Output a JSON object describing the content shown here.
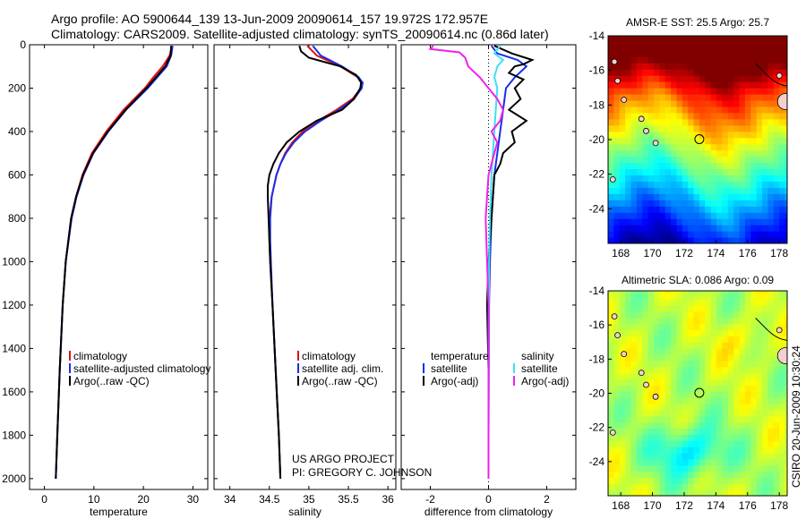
{
  "header": {
    "line1": "Argo profile: AO 5900644_139 13-Jun-2009 20090614_157 19.972S 172.957E",
    "line2": "Climatology: CARS2009. Satellite-adjusted climatology: synTS_20090614.nc (0.86d later)"
  },
  "colors": {
    "climatology": "#e01010",
    "satellite": "#1a2ee8",
    "argo": "#000000",
    "sal_satellite": "#40e0f0",
    "sal_argo": "#ee22ee"
  },
  "credits": {
    "project": "US ARGO PROJECT",
    "pi": "PI: GREGORY C. JOHNSON",
    "timestamp": "CSIRO 20-Jun-2009 10:30:24"
  },
  "chart_data": [
    {
      "type": "line",
      "title": "",
      "xlabel": "temperature",
      "ylabel": "",
      "xlim": [
        -3,
        33
      ],
      "ylim": [
        2050,
        0
      ],
      "xticks": [
        0,
        10,
        20,
        30
      ],
      "yticks": [
        0,
        200,
        400,
        600,
        800,
        1000,
        1200,
        1400,
        1600,
        1800,
        2000
      ],
      "legend": [
        "climatology",
        "satellite-adjusted climatology",
        "Argo(..raw -QC)"
      ],
      "series": [
        {
          "name": "climatology",
          "color": "#e01010",
          "depth": [
            5,
            50,
            100,
            150,
            200,
            300,
            400,
            500,
            600,
            700,
            800,
            1000,
            1200,
            1500,
            1800,
            2000
          ],
          "values": [
            25.8,
            25.3,
            23.9,
            22.0,
            20.3,
            16.0,
            12.5,
            9.6,
            7.7,
            6.4,
            5.4,
            4.3,
            3.7,
            3.1,
            2.6,
            2.3
          ]
        },
        {
          "name": "satellite-adjusted climatology",
          "color": "#1a2ee8",
          "depth": [
            5,
            50,
            100,
            150,
            200,
            300,
            400,
            500,
            600,
            700,
            800,
            1000,
            1200,
            1500,
            1800,
            2000
          ],
          "values": [
            25.9,
            25.6,
            24.7,
            22.8,
            20.9,
            16.5,
            12.9,
            9.9,
            7.9,
            6.5,
            5.5,
            4.3,
            3.7,
            3.1,
            2.6,
            2.3
          ]
        },
        {
          "name": "Argo(..raw -QC)",
          "color": "#000000",
          "depth": [
            5,
            50,
            100,
            150,
            200,
            300,
            400,
            500,
            600,
            700,
            800,
            1000,
            1200,
            1500,
            1800,
            2000
          ],
          "values": [
            25.6,
            25.5,
            24.4,
            22.5,
            20.6,
            16.4,
            12.8,
            9.8,
            7.8,
            6.4,
            5.4,
            4.3,
            3.7,
            3.1,
            2.6,
            2.3
          ]
        }
      ]
    },
    {
      "type": "line",
      "title": "",
      "xlabel": "salinity",
      "ylabel": "",
      "xlim": [
        33.8,
        36.1
      ],
      "ylim": [
        2050,
        0
      ],
      "xticks": [
        34,
        34.5,
        35,
        35.5,
        36
      ],
      "yticks": [
        0,
        200,
        400,
        600,
        800,
        1000,
        1200,
        1400,
        1600,
        1800,
        2000
      ],
      "legend": [
        "climatology",
        "satellite adj. clim.",
        "Argo(..raw -QC)"
      ],
      "series": [
        {
          "name": "climatology",
          "color": "#e01010",
          "depth": [
            5,
            50,
            100,
            150,
            175,
            200,
            250,
            300,
            350,
            400,
            450,
            500,
            550,
            600,
            700,
            800,
            900,
            1000,
            1200,
            1500,
            1800,
            2000
          ],
          "values": [
            34.98,
            35.1,
            35.4,
            35.62,
            35.68,
            35.66,
            35.55,
            35.35,
            35.12,
            34.92,
            34.79,
            34.7,
            34.64,
            34.59,
            34.53,
            34.5,
            34.5,
            34.51,
            34.54,
            34.58,
            34.62,
            34.64
          ]
        },
        {
          "name": "satellite adj. clim.",
          "color": "#1a2ee8",
          "depth": [
            5,
            50,
            100,
            150,
            175,
            200,
            250,
            300,
            350,
            400,
            450,
            500,
            550,
            600,
            700,
            800,
            900,
            1000,
            1200,
            1500,
            1800,
            2000
          ],
          "values": [
            35.05,
            35.15,
            35.42,
            35.63,
            35.68,
            35.67,
            35.57,
            35.38,
            35.15,
            34.95,
            34.81,
            34.71,
            34.64,
            34.59,
            34.53,
            34.51,
            34.51,
            34.52,
            34.54,
            34.58,
            34.62,
            34.64
          ]
        },
        {
          "name": "Argo(..raw -QC)",
          "color": "#000000",
          "depth": [
            5,
            30,
            60,
            80,
            100,
            140,
            175,
            200,
            250,
            300,
            350,
            400,
            450,
            500,
            550,
            600,
            650,
            700,
            800,
            900,
            1000,
            1200,
            1500,
            1800,
            2000
          ],
          "values": [
            34.88,
            34.9,
            35.0,
            35.2,
            35.4,
            35.6,
            35.66,
            35.65,
            35.57,
            35.42,
            35.1,
            34.88,
            34.72,
            34.62,
            34.55,
            34.5,
            34.48,
            34.48,
            34.49,
            34.5,
            34.51,
            34.54,
            34.58,
            34.62,
            34.64
          ]
        }
      ]
    },
    {
      "type": "line",
      "title": "",
      "xlabel": "difference from climatology",
      "ylabel": "",
      "xlim": [
        -3,
        3
      ],
      "ylim": [
        2050,
        0
      ],
      "xticks": [
        -2,
        0,
        2
      ],
      "yticks": [
        0,
        200,
        400,
        600,
        800,
        1000,
        1200,
        1400,
        1600,
        1800,
        2000
      ],
      "legend_temperature_header": "temperature",
      "legend_salinity_header": "salinity",
      "legend": [
        "satellite",
        "Argo(-adj)",
        "satellite",
        "Argo(-adj)"
      ],
      "series": [
        {
          "name": "temperature satellite",
          "color": "#1a2ee8",
          "depth": [
            5,
            40,
            70,
            100,
            150,
            200,
            300,
            400,
            500,
            600,
            700,
            800,
            1000,
            1200,
            1500,
            1800,
            2000
          ],
          "values": [
            0.1,
            0.3,
            1.0,
            1.3,
            0.9,
            0.6,
            0.5,
            0.4,
            0.3,
            0.2,
            0.15,
            0.1,
            0.05,
            0.02,
            0.01,
            0.0,
            0.0
          ]
        },
        {
          "name": "temperature Argo(-adj)",
          "color": "#000000",
          "depth": [
            5,
            40,
            70,
            90,
            100,
            130,
            160,
            200,
            250,
            300,
            350,
            400,
            450,
            500,
            550,
            600,
            700,
            800,
            1000,
            1200,
            1500,
            1800,
            2000
          ],
          "values": [
            0.2,
            0.8,
            1.5,
            1.2,
            0.9,
            0.7,
            1.2,
            0.9,
            1.1,
            0.7,
            1.3,
            0.8,
            0.9,
            0.5,
            0.4,
            0.2,
            0.15,
            0.1,
            0.0,
            -0.05,
            0.0,
            0.0,
            0.0
          ]
        },
        {
          "name": "salinity satellite",
          "color": "#40e0f0",
          "depth": [
            5,
            40,
            70,
            100,
            150,
            200,
            300,
            400,
            500,
            600,
            800,
            1000,
            1500,
            2000
          ],
          "values": [
            0.4,
            0.2,
            0.5,
            0.3,
            0.2,
            0.3,
            0.25,
            0.2,
            0.15,
            0.1,
            0.05,
            0.02,
            0.0,
            0.0
          ]
        },
        {
          "name": "salinity Argo(-adj)",
          "color": "#ee22ee",
          "depth": [
            5,
            20,
            35,
            60,
            100,
            150,
            200,
            250,
            300,
            350,
            400,
            450,
            500,
            550,
            600,
            700,
            800,
            1000,
            1200,
            1500,
            1800,
            2000
          ],
          "values": [
            -1.9,
            -2.0,
            -1.0,
            -0.8,
            -0.7,
            -0.3,
            0.0,
            0.3,
            0.5,
            0.4,
            0.1,
            0.3,
            0.2,
            0.1,
            0.0,
            -0.05,
            -0.1,
            -0.05,
            0.0,
            0.0,
            0.0,
            0.0
          ]
        }
      ]
    },
    {
      "type": "heatmap",
      "title": "AMSR-E SST: 25.5 Argo: 25.7",
      "xlabel": "",
      "ylabel": "",
      "xlim": [
        167.2,
        178.5
      ],
      "ylim": [
        -26,
        -14
      ],
      "xticks": [
        168,
        170,
        172,
        174,
        176,
        178
      ],
      "yticks": [
        -14,
        -16,
        -18,
        -20,
        -22,
        -24
      ],
      "marker": {
        "lon": 172.957,
        "lat": -19.972
      },
      "colorscale": "jet",
      "value_range": [
        21,
        28
      ],
      "legend": "none"
    },
    {
      "type": "heatmap",
      "title": "Altimetric SLA: 0.086 Argo: 0.09",
      "xlabel": "",
      "ylabel": "",
      "xlim": [
        167.2,
        178.5
      ],
      "ylim": [
        -26,
        -14
      ],
      "xticks": [
        168,
        170,
        172,
        174,
        176,
        178
      ],
      "yticks": [
        -14,
        -16,
        -18,
        -20,
        -22,
        -24
      ],
      "marker": {
        "lon": 172.957,
        "lat": -19.972
      },
      "colorscale": "jet",
      "value_range": [
        -0.2,
        0.3
      ],
      "legend": "none"
    }
  ]
}
